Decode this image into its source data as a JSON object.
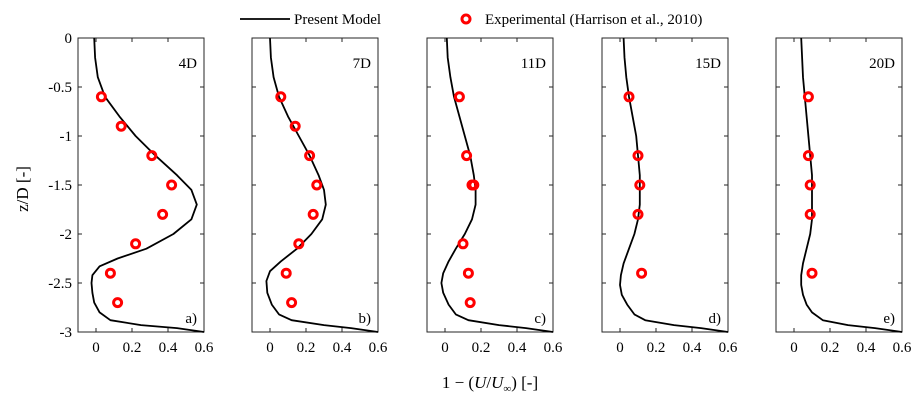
{
  "chart_data": {
    "type": "line",
    "ylabel": "z/D [-]",
    "xlabel_parts": [
      "1 − (",
      "U",
      "/",
      "U",
      "∞",
      ") [-]"
    ],
    "xlim": [
      -0.1,
      0.6
    ],
    "ylim": [
      -3,
      0
    ],
    "xticks": [
      0,
      0.2,
      0.4,
      0.6
    ],
    "xtick_labels": [
      "0",
      "0.2",
      "0.4",
      "0.6"
    ],
    "yticks": [
      0,
      -0.5,
      -1,
      -1.5,
      -2,
      -2.5,
      -3
    ],
    "ytick_labels": [
      "0",
      "-0.5",
      "-1",
      "-1.5",
      "-2",
      "-2.5",
      "-3"
    ],
    "legend": [
      {
        "name": "Present Model",
        "marker": "line",
        "color": "#000000"
      },
      {
        "name": "Experimental (Harrison et al., 2010)",
        "marker": "circle",
        "color": "#ff0000"
      }
    ],
    "panels": [
      {
        "title": "4D",
        "letter": "a)",
        "model": [
          [
            -0.01,
            0
          ],
          [
            -0.005,
            -0.2
          ],
          [
            0.01,
            -0.4
          ],
          [
            0.05,
            -0.6
          ],
          [
            0.13,
            -0.8
          ],
          [
            0.22,
            -1.0
          ],
          [
            0.33,
            -1.2
          ],
          [
            0.45,
            -1.4
          ],
          [
            0.53,
            -1.55
          ],
          [
            0.56,
            -1.7
          ],
          [
            0.53,
            -1.85
          ],
          [
            0.43,
            -2.0
          ],
          [
            0.28,
            -2.15
          ],
          [
            0.12,
            -2.25
          ],
          [
            0.02,
            -2.33
          ],
          [
            -0.02,
            -2.42
          ],
          [
            -0.025,
            -2.5
          ],
          [
            -0.02,
            -2.6
          ],
          [
            -0.01,
            -2.7
          ],
          [
            0.02,
            -2.8
          ],
          [
            0.08,
            -2.88
          ],
          [
            0.25,
            -2.93
          ],
          [
            0.45,
            -2.96
          ],
          [
            0.6,
            -3.0
          ]
        ],
        "experimental": [
          [
            0.03,
            -0.6
          ],
          [
            0.14,
            -0.9
          ],
          [
            0.31,
            -1.2
          ],
          [
            0.42,
            -1.5
          ],
          [
            0.37,
            -1.8
          ],
          [
            0.22,
            -2.1
          ],
          [
            0.08,
            -2.4
          ],
          [
            0.12,
            -2.7
          ]
        ]
      },
      {
        "title": "7D",
        "letter": "b)",
        "model": [
          [
            0.0,
            0
          ],
          [
            0.005,
            -0.2
          ],
          [
            0.02,
            -0.4
          ],
          [
            0.05,
            -0.6
          ],
          [
            0.1,
            -0.8
          ],
          [
            0.16,
            -1.0
          ],
          [
            0.22,
            -1.2
          ],
          [
            0.27,
            -1.4
          ],
          [
            0.3,
            -1.55
          ],
          [
            0.31,
            -1.7
          ],
          [
            0.29,
            -1.85
          ],
          [
            0.23,
            -2.0
          ],
          [
            0.15,
            -2.15
          ],
          [
            0.06,
            -2.28
          ],
          [
            0.0,
            -2.38
          ],
          [
            -0.02,
            -2.48
          ],
          [
            -0.015,
            -2.6
          ],
          [
            0.01,
            -2.72
          ],
          [
            0.05,
            -2.82
          ],
          [
            0.12,
            -2.88
          ],
          [
            0.3,
            -2.93
          ],
          [
            0.45,
            -2.96
          ],
          [
            0.6,
            -3.0
          ]
        ],
        "experimental": [
          [
            0.06,
            -0.6
          ],
          [
            0.14,
            -0.9
          ],
          [
            0.22,
            -1.2
          ],
          [
            0.26,
            -1.5
          ],
          [
            0.24,
            -1.8
          ],
          [
            0.16,
            -2.1
          ],
          [
            0.09,
            -2.4
          ],
          [
            0.12,
            -2.7
          ]
        ]
      },
      {
        "title": "11D",
        "letter": "c)",
        "model": [
          [
            0.01,
            0
          ],
          [
            0.015,
            -0.2
          ],
          [
            0.03,
            -0.4
          ],
          [
            0.05,
            -0.6
          ],
          [
            0.08,
            -0.8
          ],
          [
            0.11,
            -1.0
          ],
          [
            0.14,
            -1.2
          ],
          [
            0.16,
            -1.4
          ],
          [
            0.17,
            -1.55
          ],
          [
            0.17,
            -1.7
          ],
          [
            0.15,
            -1.85
          ],
          [
            0.11,
            -2.0
          ],
          [
            0.06,
            -2.15
          ],
          [
            0.02,
            -2.28
          ],
          [
            -0.01,
            -2.4
          ],
          [
            -0.02,
            -2.5
          ],
          [
            -0.01,
            -2.6
          ],
          [
            0.02,
            -2.72
          ],
          [
            0.06,
            -2.82
          ],
          [
            0.13,
            -2.88
          ],
          [
            0.3,
            -2.93
          ],
          [
            0.45,
            -2.96
          ],
          [
            0.6,
            -3.0
          ]
        ],
        "experimental": [
          [
            0.08,
            -0.6
          ],
          [
            0.12,
            -1.2
          ],
          [
            0.15,
            -1.5
          ],
          [
            0.16,
            -1.5
          ],
          [
            0.1,
            -2.1
          ],
          [
            0.13,
            -2.4
          ],
          [
            0.14,
            -2.7
          ]
        ]
      },
      {
        "title": "15D",
        "letter": "d)",
        "model": [
          [
            0.02,
            0
          ],
          [
            0.025,
            -0.2
          ],
          [
            0.035,
            -0.4
          ],
          [
            0.05,
            -0.6
          ],
          [
            0.07,
            -0.8
          ],
          [
            0.09,
            -1.0
          ],
          [
            0.1,
            -1.2
          ],
          [
            0.11,
            -1.4
          ],
          [
            0.11,
            -1.55
          ],
          [
            0.11,
            -1.7
          ],
          [
            0.1,
            -1.85
          ],
          [
            0.08,
            -2.0
          ],
          [
            0.05,
            -2.15
          ],
          [
            0.02,
            -2.3
          ],
          [
            0.005,
            -2.42
          ],
          [
            0.0,
            -2.52
          ],
          [
            0.01,
            -2.62
          ],
          [
            0.04,
            -2.72
          ],
          [
            0.08,
            -2.82
          ],
          [
            0.14,
            -2.88
          ],
          [
            0.3,
            -2.93
          ],
          [
            0.45,
            -2.96
          ],
          [
            0.6,
            -3.0
          ]
        ],
        "experimental": [
          [
            0.05,
            -0.6
          ],
          [
            0.1,
            -1.2
          ],
          [
            0.11,
            -1.5
          ],
          [
            0.1,
            -1.8
          ],
          [
            0.12,
            -2.4
          ]
        ]
      },
      {
        "title": "20D",
        "letter": "e)",
        "model": [
          [
            0.04,
            0
          ],
          [
            0.045,
            -0.2
          ],
          [
            0.05,
            -0.4
          ],
          [
            0.06,
            -0.6
          ],
          [
            0.07,
            -0.8
          ],
          [
            0.08,
            -1.0
          ],
          [
            0.09,
            -1.2
          ],
          [
            0.1,
            -1.4
          ],
          [
            0.1,
            -1.55
          ],
          [
            0.1,
            -1.7
          ],
          [
            0.1,
            -1.85
          ],
          [
            0.09,
            -2.0
          ],
          [
            0.07,
            -2.15
          ],
          [
            0.05,
            -2.3
          ],
          [
            0.04,
            -2.42
          ],
          [
            0.04,
            -2.52
          ],
          [
            0.05,
            -2.62
          ],
          [
            0.07,
            -2.72
          ],
          [
            0.1,
            -2.8
          ],
          [
            0.16,
            -2.88
          ],
          [
            0.3,
            -2.93
          ],
          [
            0.45,
            -2.96
          ],
          [
            0.6,
            -3.0
          ]
        ],
        "experimental": [
          [
            0.08,
            -0.6
          ],
          [
            0.08,
            -1.2
          ],
          [
            0.09,
            -1.5
          ],
          [
            0.09,
            -1.8
          ],
          [
            0.1,
            -2.4
          ]
        ]
      }
    ]
  }
}
